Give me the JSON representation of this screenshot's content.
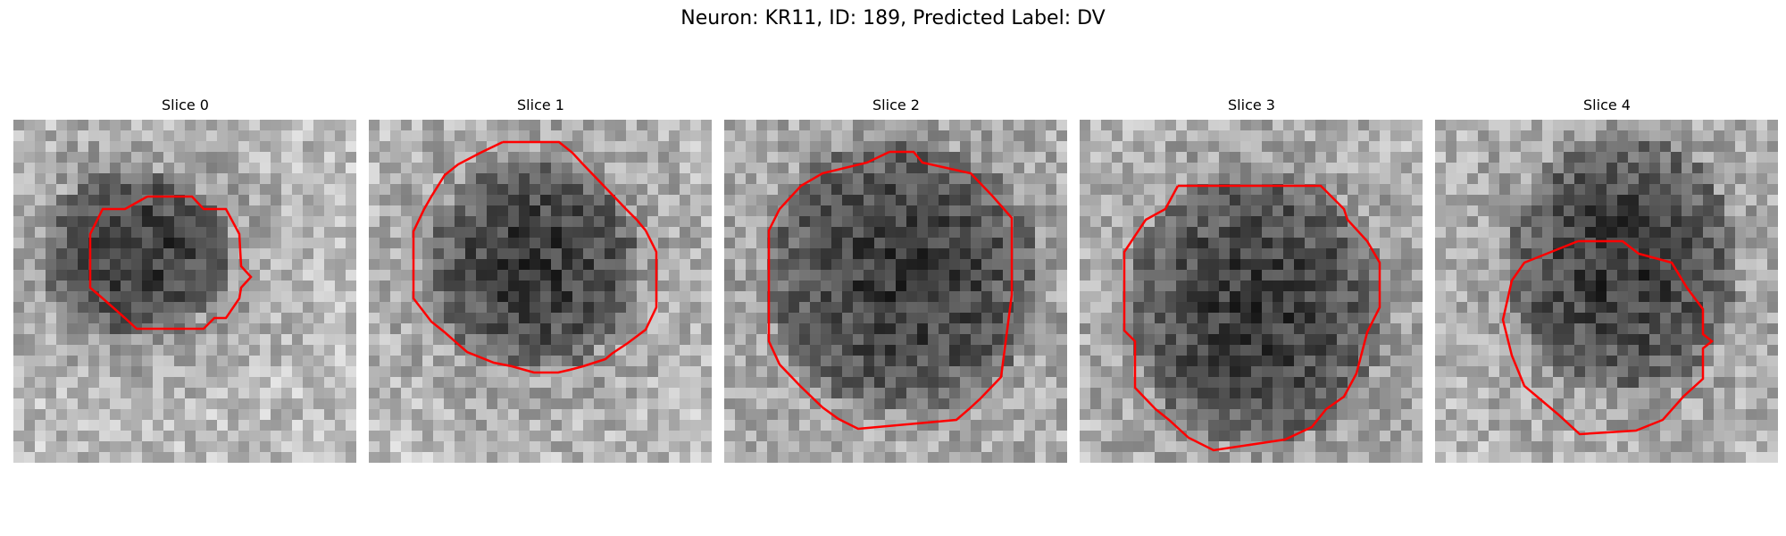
{
  "figure": {
    "title": "Neuron: KR11, ID: 189, Predicted Label: DV"
  },
  "slices": [
    {
      "label": "Slice 0"
    },
    {
      "label": "Slice 1"
    },
    {
      "label": "Slice 2"
    },
    {
      "label": "Slice 3"
    },
    {
      "label": "Slice 4"
    }
  ],
  "colors": {
    "contour": "#ff0000",
    "background": "#ffffff"
  }
}
